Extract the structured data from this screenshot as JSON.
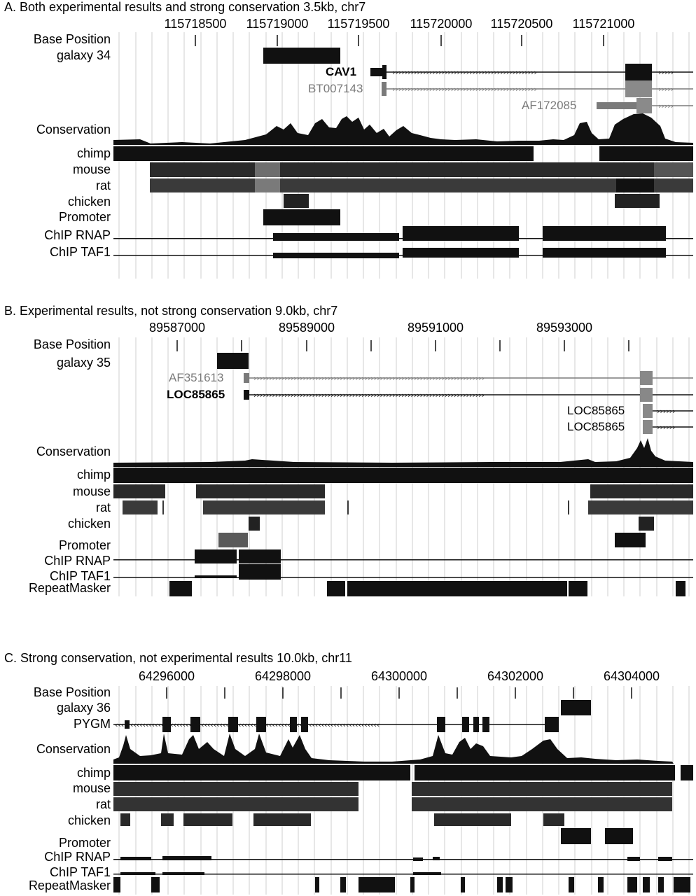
{
  "panels": [
    {
      "title": "A. Both experimental results and strong conservation  3.5kb, chr7",
      "ticks": [
        "115718500",
        "115719000",
        "115719500",
        "115720000",
        "115720500",
        "115721000"
      ],
      "tracks": [
        "Base Position",
        "galaxy 34",
        "Conservation",
        "chimp",
        "mouse",
        "rat",
        "chicken",
        "Promoter",
        "ChIP RNAP",
        "ChIP TAF1"
      ],
      "genes": [
        "CAV1",
        "BT007143",
        "AF172085"
      ]
    },
    {
      "title": "B. Experimental results, not strong conservation  9.0kb, chr7",
      "ticks": [
        "89587000",
        "89589000",
        "89591000",
        "89593000"
      ],
      "tracks": [
        "Base Position",
        "galaxy 35",
        "Conservation",
        "chimp",
        "mouse",
        "rat",
        "chicken",
        "Promoter",
        "ChIP RNAP",
        "ChIP TAF1",
        "RepeatMasker"
      ],
      "genes": [
        "AF351613",
        "LOC85865",
        "LOC85865",
        "LOC85865"
      ]
    },
    {
      "title": "C. Strong conservation, not experimental results  10.0kb, chr11",
      "ticks": [
        "64296000",
        "64298000",
        "64300000",
        "64302000",
        "64304000"
      ],
      "tracks": [
        "Base Position",
        "galaxy 36",
        "PYGM",
        "Conservation",
        "chimp",
        "mouse",
        "rat",
        "chicken",
        "Promoter",
        "ChIP RNAP",
        "ChIP TAF1",
        "RepeatMasker"
      ],
      "genes": []
    }
  ],
  "colors": {
    "ink": "#111111",
    "gray": "#7a7a7a",
    "grid": "#cfcfcf"
  }
}
